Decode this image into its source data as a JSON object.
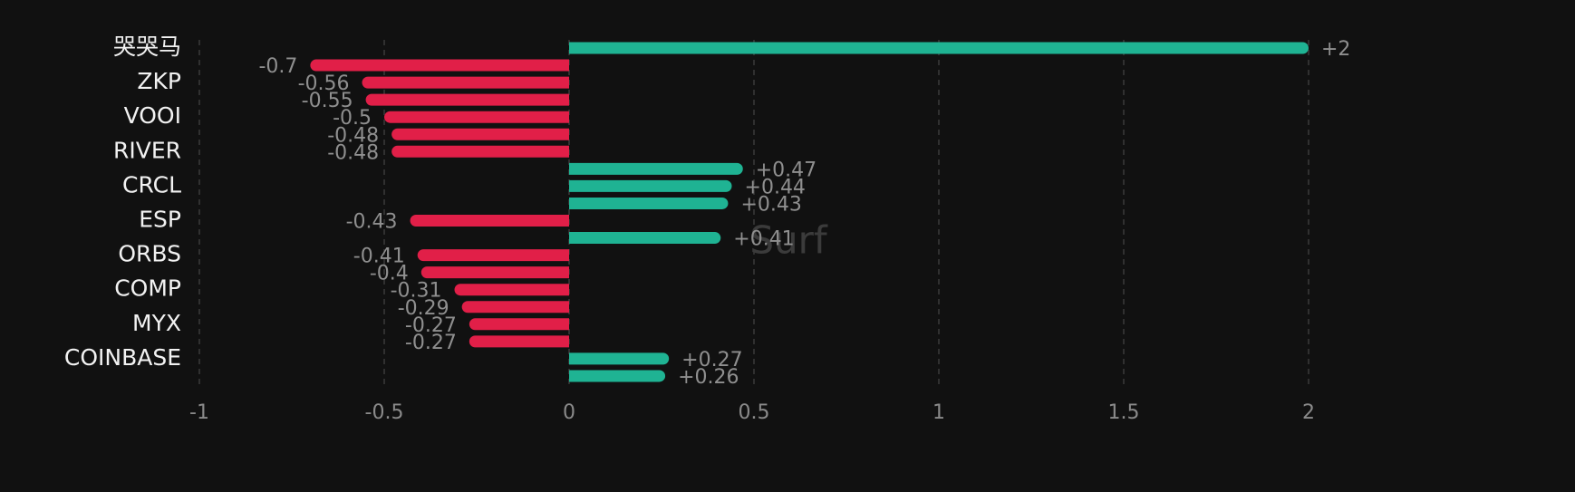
{
  "chart_data": {
    "type": "hbar",
    "watermark": "Surf",
    "categories": [
      "哭哭马",
      null,
      "ZKP",
      null,
      "VOOI",
      null,
      "RIVER",
      null,
      "CRCL",
      null,
      "ESP",
      null,
      "ORBS",
      null,
      "COMP",
      null,
      "MYX",
      null,
      "COINBASE",
      null
    ],
    "values": [
      2,
      -0.7,
      -0.56,
      -0.55,
      -0.5,
      -0.48,
      -0.48,
      0.47,
      0.44,
      0.43,
      -0.43,
      0.41,
      -0.41,
      -0.4,
      -0.31,
      -0.29,
      -0.27,
      -0.27,
      0.27,
      0.26
    ],
    "value_labels": [
      "+2",
      "-0.7",
      "-0.56",
      "-0.55",
      "-0.5",
      "-0.48",
      "-0.48",
      "+0.47",
      "+0.44",
      "+0.43",
      "-0.43",
      "+0.41",
      "-0.41",
      "-0.4",
      "-0.31",
      "-0.29",
      "-0.27",
      "-0.27",
      "+0.27",
      "+0.26"
    ],
    "positive_color": "#1fb393",
    "negative_color": "#e11f48",
    "xlim": [
      -1,
      2.25
    ],
    "xticks": [
      -1,
      -0.5,
      0,
      0.5,
      1,
      1.5,
      2
    ],
    "grid": true
  }
}
